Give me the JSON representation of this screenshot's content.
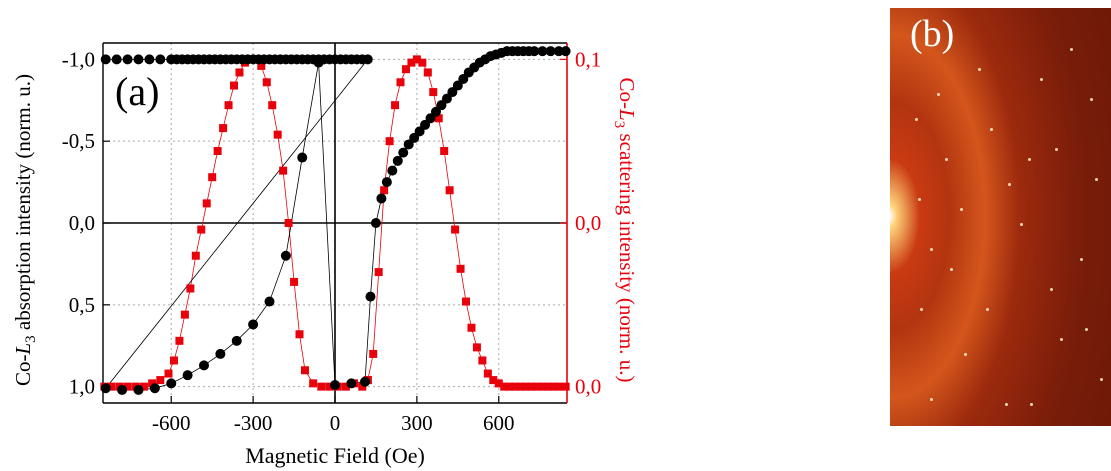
{
  "panel_a_label": "(a)",
  "panel_b_label": "(b)",
  "colors": {
    "absorption": "#000000",
    "scattering": "#e8000b"
  },
  "chart_data": {
    "type": "scatter",
    "xlabel": "Magnetic Field (Oe)",
    "y1label": [
      "Co-",
      "L",
      "3",
      " absorption intensity (norm. u.)"
    ],
    "y2label": [
      "Co-",
      "L",
      "3",
      " scattering intensity (norm. u.)"
    ],
    "xlim": [
      -850,
      850
    ],
    "xticks": [
      -600,
      -300,
      0,
      300,
      600
    ],
    "xtick_labels": [
      "-600",
      "-300",
      "0",
      "300",
      "600"
    ],
    "y1lim": [
      1.1,
      -1.1
    ],
    "y1ticks": [
      -1.0,
      -0.5,
      0.0,
      0.5,
      1.0
    ],
    "y1tick_labels": [
      "-1,0",
      "-0,5",
      "0,0",
      "0,5",
      "1,0"
    ],
    "y2tick_labels": [
      "0,1",
      "0,0",
      "0,0"
    ],
    "y2lim": [
      0,
      0.1
    ],
    "grid": true,
    "series": [
      {
        "axis": "left",
        "marker": "circle",
        "color": "#000000",
        "x": [
          -840,
          -800,
          -760,
          -720,
          -680,
          -640,
          -600,
          -580,
          -560,
          -540,
          -520,
          -500,
          -480,
          -460,
          -440,
          -420,
          -400,
          -380,
          -360,
          -340,
          -320,
          -300,
          -280,
          -260,
          -240,
          -220,
          -200,
          -180,
          -160,
          -140,
          -120,
          -100,
          -80,
          -60,
          -40,
          -20,
          0,
          20,
          40,
          60,
          80,
          100,
          120,
          -840,
          -780,
          -720,
          -660,
          -600,
          -540,
          -480,
          -420,
          -360,
          -300,
          -240,
          -180,
          -120,
          -60,
          0,
          60,
          110,
          130,
          150,
          170,
          190,
          210,
          230,
          250,
          270,
          290,
          310,
          330,
          350,
          370,
          390,
          410,
          430,
          450,
          470,
          490,
          510,
          530,
          550,
          570,
          590,
          610,
          630,
          650,
          670,
          690,
          710,
          730,
          760,
          790,
          820,
          845
        ],
        "y": [
          -1.0,
          -1.0,
          -1.0,
          -1.0,
          -1.0,
          -1.0,
          -1.0,
          -1.0,
          -1.0,
          -1.0,
          -1.0,
          -1.0,
          -1.0,
          -1.0,
          -1.0,
          -1.0,
          -1.0,
          -1.0,
          -1.0,
          -1.0,
          -1.0,
          -1.0,
          -1.0,
          -1.0,
          -1.0,
          -1.0,
          -1.0,
          -1.0,
          -1.0,
          -1.0,
          -1.0,
          -1.0,
          -1.0,
          -1.0,
          -1.0,
          -1.0,
          -1.0,
          -1.0,
          -1.0,
          -1.0,
          -1.0,
          -1.0,
          -1.0,
          1.01,
          1.02,
          1.02,
          1.01,
          0.98,
          0.93,
          0.87,
          0.8,
          0.72,
          0.62,
          0.48,
          0.2,
          -0.4,
          -0.98,
          0.99,
          0.98,
          0.97,
          0.45,
          0.0,
          -0.15,
          -0.25,
          -0.32,
          -0.38,
          -0.43,
          -0.48,
          -0.52,
          -0.56,
          -0.6,
          -0.64,
          -0.68,
          -0.72,
          -0.76,
          -0.8,
          -0.84,
          -0.88,
          -0.92,
          -0.95,
          -0.98,
          -1.0,
          -1.02,
          -1.03,
          -1.04,
          -1.05,
          -1.05,
          -1.05,
          -1.05,
          -1.05,
          -1.05,
          -1.05,
          -1.05,
          -1.05,
          -1.05
        ]
      },
      {
        "axis": "right",
        "marker": "square",
        "color": "#e8000b",
        "x": [
          -845,
          -820,
          -790,
          -760,
          -730,
          -700,
          -670,
          -640,
          -610,
          -590,
          -570,
          -550,
          -530,
          -510,
          -490,
          -470,
          -450,
          -430,
          -410,
          -390,
          -370,
          -350,
          -330,
          -310,
          -290,
          -270,
          -250,
          -230,
          -210,
          -190,
          -170,
          -150,
          -130,
          -110,
          -80,
          -50,
          -20,
          10,
          40,
          70,
          100,
          120,
          120,
          140,
          160,
          180,
          200,
          220,
          240,
          260,
          280,
          300,
          320,
          340,
          360,
          380,
          400,
          420,
          440,
          460,
          480,
          500,
          520,
          540,
          560,
          580,
          600,
          620,
          640,
          660,
          680,
          700,
          720,
          740,
          760,
          780,
          800,
          820,
          845
        ],
        "y": [
          0.0,
          0.0,
          0.0,
          0.0,
          0.0,
          0.0,
          0.001,
          0.002,
          0.004,
          0.008,
          0.014,
          0.022,
          0.03,
          0.04,
          0.048,
          0.056,
          0.064,
          0.072,
          0.079,
          0.086,
          0.092,
          0.096,
          0.099,
          0.1,
          0.1,
          0.098,
          0.093,
          0.086,
          0.077,
          0.066,
          0.05,
          0.032,
          0.016,
          0.005,
          0.001,
          0.0,
          0.0,
          0.0,
          0.0,
          0.001,
          0.0,
          0.002,
          0.002,
          0.01,
          0.035,
          0.06,
          0.075,
          0.086,
          0.093,
          0.097,
          0.099,
          0.1,
          0.099,
          0.096,
          0.09,
          0.082,
          0.072,
          0.06,
          0.048,
          0.036,
          0.026,
          0.018,
          0.012,
          0.008,
          0.004,
          0.002,
          0.001,
          0.0,
          0.0,
          0.0,
          0.0,
          0.0,
          0.0,
          0.0,
          0.0,
          0.0,
          0.0,
          0.0,
          0.0
        ]
      }
    ]
  }
}
